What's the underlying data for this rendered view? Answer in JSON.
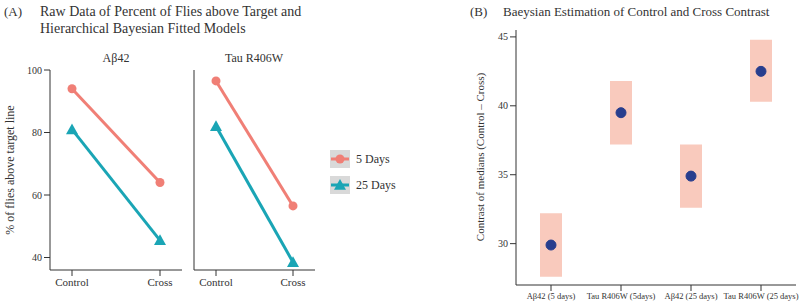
{
  "chart_data": [
    {
      "panel": "(A)",
      "type": "line",
      "title": [
        "Raw Data of Percent of Flies above Target and",
        "Hierarchical Bayesian Fitted Models"
      ],
      "ylabel": "% of flies above target line",
      "categories": [
        "Control",
        "Cross"
      ],
      "ylim": [
        36,
        100
      ],
      "yticks": [
        40,
        60,
        80,
        100
      ],
      "legend": "right",
      "facets": [
        {
          "title": "Aβ42",
          "series": [
            {
              "name": "5 Days",
              "color": "#f07f76",
              "marker": "circle",
              "values": [
                94,
                64
              ]
            },
            {
              "name": "25 Days",
              "color": "#1aa5b5",
              "marker": "triangle",
              "values": [
                81,
                45.5
              ]
            }
          ]
        },
        {
          "title": "Tau R406W",
          "series": [
            {
              "name": "5 Days",
              "color": "#f07f76",
              "marker": "circle",
              "values": [
                96.5,
                56.5
              ]
            },
            {
              "name": "25 Days",
              "color": "#1aa5b5",
              "marker": "triangle",
              "values": [
                82,
                38.5
              ]
            }
          ]
        }
      ]
    },
    {
      "panel": "(B)",
      "type": "scatter",
      "title": "Baeysian Estimation of Control and Cross Contrast",
      "ylabel": "Contrast of medians (Control – Cross)",
      "categories": [
        "Aβ42 (5 days)",
        "Tau R406W (5days)",
        "Aβ42 (25 days)",
        "Tau R406W (25 days)"
      ],
      "values": [
        29.9,
        39.5,
        34.9,
        42.5
      ],
      "lower": [
        27.6,
        37.2,
        32.6,
        40.3
      ],
      "upper": [
        32.2,
        41.8,
        37.2,
        44.8
      ],
      "color": "#283e8e",
      "ylim": [
        27,
        45.5
      ],
      "yticks": [
        30,
        35,
        40,
        45
      ]
    }
  ]
}
